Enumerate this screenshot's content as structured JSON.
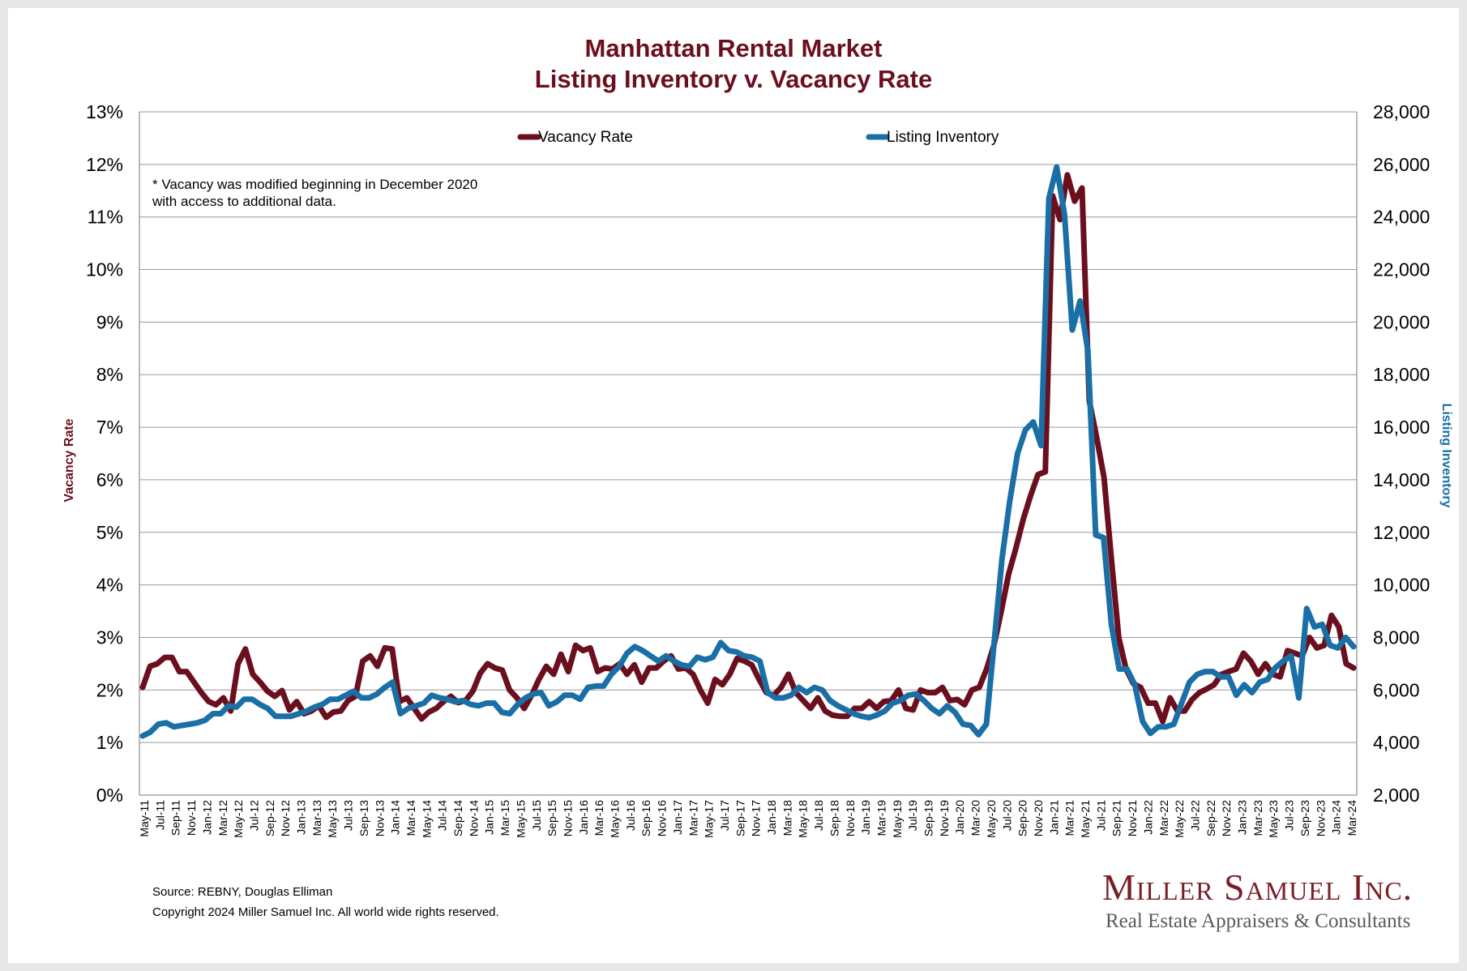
{
  "chart_data": {
    "type": "line",
    "title": "Manhattan Rental Market",
    "subtitle": "Listing Inventory v. Vacancy Rate",
    "ylabel_left": "Vacancy Rate",
    "ylabel_right": "Listing Inventory",
    "left_axis": {
      "ylim": [
        0,
        13
      ],
      "ticks": [
        "0%",
        "1%",
        "2%",
        "3%",
        "4%",
        "5%",
        "6%",
        "7%",
        "8%",
        "9%",
        "10%",
        "11%",
        "12%",
        "13%"
      ]
    },
    "right_axis": {
      "ylim": [
        2000,
        28000
      ],
      "ticks": [
        "2,000",
        "4,000",
        "6,000",
        "8,000",
        "10,000",
        "12,000",
        "14,000",
        "16,000",
        "18,000",
        "20,000",
        "22,000",
        "24,000",
        "26,000",
        "28,000"
      ]
    },
    "x_tick_labels": [
      "May-11",
      "Jul-11",
      "Sep-11",
      "Nov-11",
      "Jan-12",
      "Mar-12",
      "May-12",
      "Jul-12",
      "Sep-12",
      "Nov-12",
      "Jan-13",
      "Mar-13",
      "May-13",
      "Jul-13",
      "Sep-13",
      "Nov-13",
      "Jan-14",
      "Mar-14",
      "May-14",
      "Jul-14",
      "Sep-14",
      "Nov-14",
      "Jan-15",
      "Mar-15",
      "May-15",
      "Jul-15",
      "Sep-15",
      "Nov-15",
      "Jan-16",
      "Mar-16",
      "May-16",
      "Jul-16",
      "Sep-16",
      "Nov-16",
      "Jan-17",
      "Mar-17",
      "May-17",
      "Jul-17",
      "Sep-17",
      "Nov-17",
      "Jan-18",
      "Mar-18",
      "May-18",
      "Jul-18",
      "Sep-18",
      "Nov-18",
      "Jan-19",
      "Mar-19",
      "May-19",
      "Jul-19",
      "Sep-19",
      "Nov-19",
      "Jan-20",
      "Mar-20",
      "May-20",
      "Jul-20",
      "Sep-20",
      "Nov-20",
      "Jan-21",
      "Mar-21",
      "May-21",
      "Jul-21",
      "Sep-21",
      "Nov-21",
      "Jan-22",
      "Mar-22",
      "May-22",
      "Jul-22",
      "Sep-22",
      "Nov-22",
      "Jan-23",
      "Mar-23",
      "May-23",
      "Jul-23",
      "Sep-23",
      "Nov-23",
      "Jan-24",
      "Mar-24"
    ],
    "series": [
      {
        "name": "Vacancy Rate",
        "axis": "left",
        "color": "#6b0f1e",
        "values": [
          2.05,
          2.45,
          2.5,
          2.62,
          2.62,
          2.35,
          2.35,
          2.15,
          1.95,
          1.78,
          1.72,
          1.85,
          1.6,
          2.5,
          2.78,
          2.3,
          2.15,
          1.98,
          1.88,
          1.99,
          1.62,
          1.78,
          1.55,
          1.6,
          1.7,
          1.48,
          1.58,
          1.6,
          1.8,
          1.88,
          2.55,
          2.65,
          2.45,
          2.8,
          2.78,
          1.78,
          1.85,
          1.65,
          1.45,
          1.58,
          1.65,
          1.78,
          1.88,
          1.76,
          1.8,
          1.98,
          2.32,
          2.5,
          2.42,
          2.38,
          2.0,
          1.85,
          1.65,
          1.9,
          2.2,
          2.45,
          2.3,
          2.68,
          2.35,
          2.85,
          2.75,
          2.8,
          2.35,
          2.42,
          2.4,
          2.5,
          2.3,
          2.48,
          2.15,
          2.42,
          2.42,
          2.55,
          2.65,
          2.4,
          2.42,
          2.3,
          2.0,
          1.75,
          2.2,
          2.1,
          2.3,
          2.6,
          2.55,
          2.48,
          2.2,
          1.95,
          1.9,
          2.05,
          2.3,
          1.95,
          1.8,
          1.65,
          1.85,
          1.6,
          1.52,
          1.5,
          1.5,
          1.65,
          1.65,
          1.78,
          1.65,
          1.78,
          1.8,
          2.0,
          1.65,
          1.62,
          2.0,
          1.95,
          1.95,
          2.05,
          1.8,
          1.82,
          1.72,
          2.0,
          2.05,
          2.4,
          2.85,
          3.5,
          4.2,
          4.7,
          5.25,
          5.7,
          6.1,
          6.15,
          11.4,
          10.95,
          11.8,
          11.3,
          11.55,
          7.5,
          6.8,
          6.05,
          4.5,
          3.0,
          2.4,
          2.12,
          2.05,
          1.75,
          1.75,
          1.4,
          1.85,
          1.6,
          1.6,
          1.82,
          1.95,
          2.02,
          2.1,
          2.3,
          2.35,
          2.4,
          2.7,
          2.55,
          2.3,
          2.5,
          2.3,
          2.25,
          2.75,
          2.7,
          2.65,
          3.0,
          2.8,
          2.85,
          3.42,
          3.2,
          2.5,
          2.42
        ]
      },
      {
        "name": "Listing Inventory",
        "axis": "right",
        "color": "#1a6fa6",
        "values": [
          4250,
          4400,
          4700,
          4750,
          4600,
          4650,
          4700,
          4750,
          4850,
          5100,
          5100,
          5400,
          5350,
          5650,
          5650,
          5450,
          5300,
          5000,
          5000,
          5000,
          5100,
          5200,
          5350,
          5450,
          5650,
          5650,
          5800,
          5950,
          5700,
          5700,
          5850,
          6100,
          6300,
          5100,
          5300,
          5400,
          5500,
          5800,
          5700,
          5650,
          5550,
          5600,
          5450,
          5400,
          5500,
          5500,
          5150,
          5100,
          5450,
          5700,
          5850,
          5900,
          5400,
          5550,
          5800,
          5800,
          5650,
          6100,
          6150,
          6150,
          6600,
          6900,
          7400,
          7650,
          7500,
          7300,
          7100,
          7300,
          7100,
          6950,
          6900,
          7250,
          7150,
          7250,
          7800,
          7500,
          7450,
          7300,
          7250,
          7100,
          5900,
          5700,
          5700,
          5800,
          6100,
          5900,
          6100,
          6000,
          5600,
          5400,
          5250,
          5100,
          5000,
          4950,
          5050,
          5200,
          5500,
          5600,
          5800,
          5850,
          5600,
          5300,
          5100,
          5400,
          5150,
          4700,
          4650,
          4300,
          4700,
          7800,
          11000,
          13200,
          15000,
          15900,
          16200,
          15300,
          24700,
          25900,
          24100,
          19700,
          20800,
          18900,
          11900,
          11800,
          8500,
          6800,
          6800,
          6200,
          4800,
          4350,
          4600,
          4600,
          4700,
          5500,
          6300,
          6600,
          6700,
          6700,
          6500,
          6500,
          5800,
          6200,
          5900,
          6300,
          6400,
          6850,
          7100,
          7300,
          5700,
          9100,
          8400,
          8500,
          7700,
          7600,
          8000,
          7650
        ]
      }
    ]
  },
  "legend": {
    "vacancy_label": "Vacancy Rate",
    "inventory_label": "Listing Inventory"
  },
  "note": {
    "line1": "* Vacancy was modified beginning in December 2020",
    "line2": "with access to additional data."
  },
  "footer": {
    "source": "Source: REBNY, Douglas Elliman",
    "copyright": "Copyright 2024 Miller Samuel Inc.  All world wide rights reserved."
  },
  "brand": {
    "name": "Miller Samuel Inc.",
    "tagline": "Real Estate Appraisers & Consultants"
  }
}
